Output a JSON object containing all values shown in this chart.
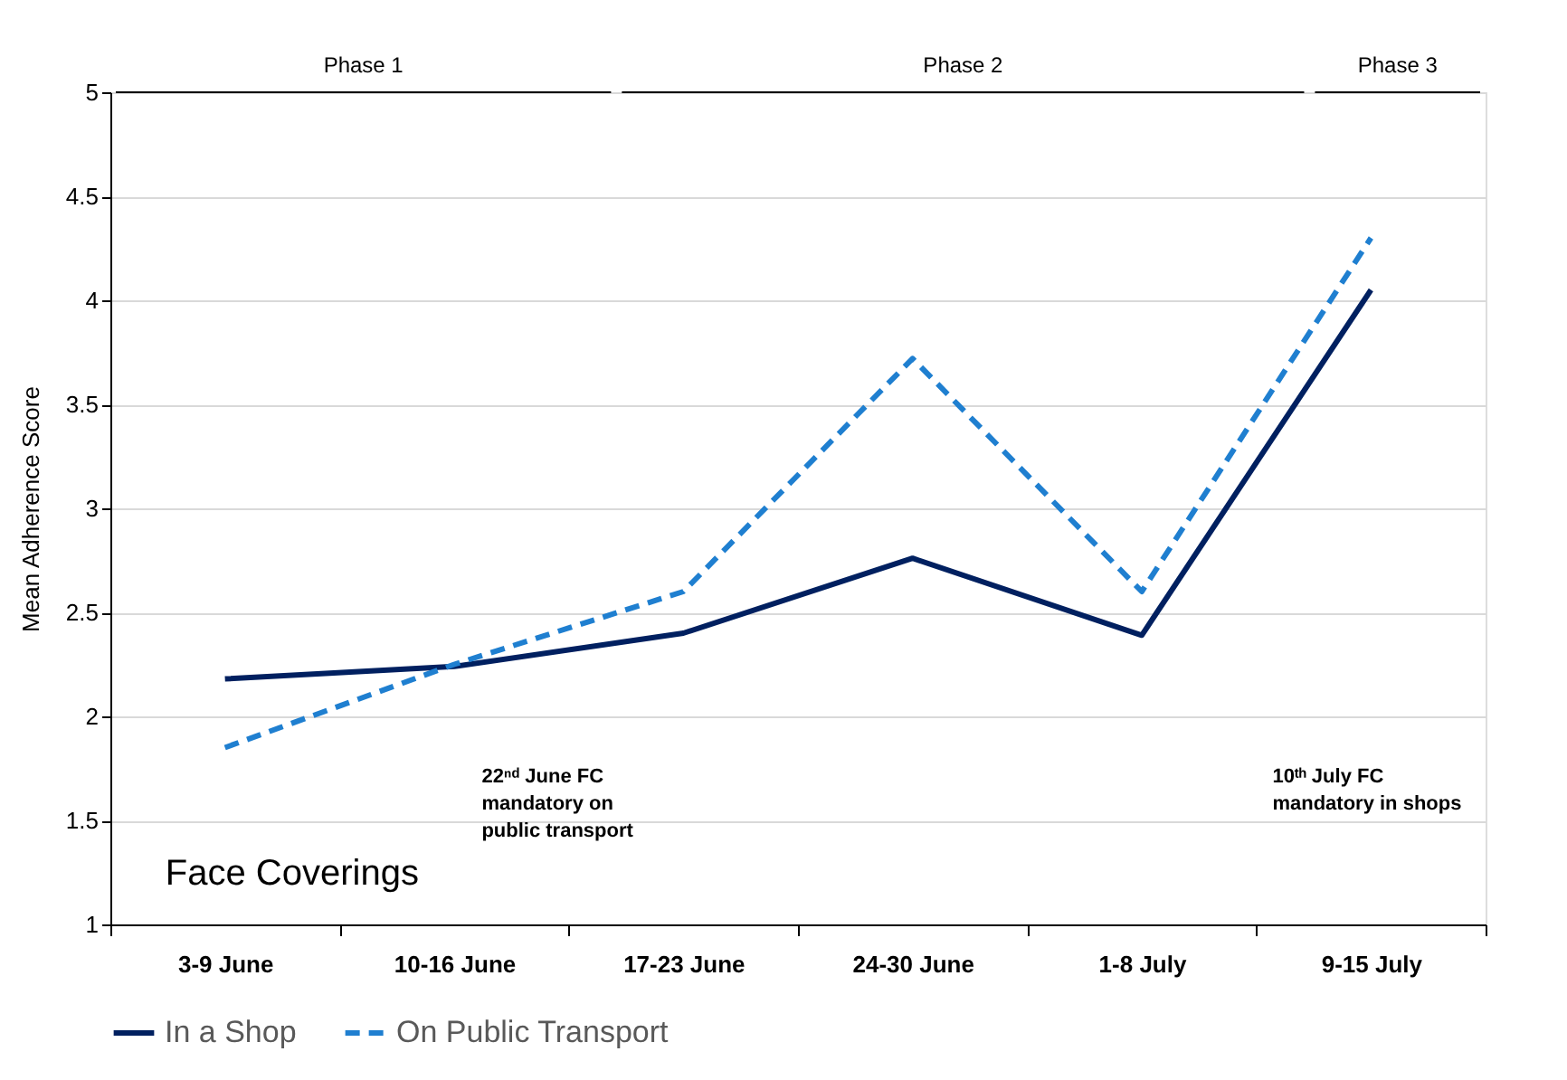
{
  "chart_data": {
    "type": "line",
    "title": "Face Coverings",
    "ylabel": "Mean Adherence Score",
    "categories": [
      "3-9 June",
      "10-16 June",
      "17-23 June",
      "24-30 June",
      "1-8 July",
      "9-15 July"
    ],
    "series": [
      {
        "name": "In a Shop",
        "color": "#002060",
        "values": [
          2.18,
          2.24,
          2.4,
          2.76,
          2.39,
          4.05
        ],
        "line_style": "solid"
      },
      {
        "name": "On Public Transport",
        "color": "#1f7fd0",
        "values": [
          1.85,
          2.25,
          2.6,
          3.72,
          2.6,
          4.3
        ],
        "line_style": "dashed"
      }
    ],
    "ylim": [
      1,
      5
    ],
    "yticks": [
      1,
      1.5,
      2,
      2.5,
      3,
      3.5,
      4,
      4.5,
      5
    ],
    "grid": "y",
    "legend": "bottom",
    "marker": "none",
    "annotations": [
      "Phase 1",
      "Phase 2",
      "Phase 3",
      "22ⁿᵈ June FC\nmandatory on\npublic transport",
      "10ᵗʰ July FC\nmandatory in shops"
    ]
  }
}
